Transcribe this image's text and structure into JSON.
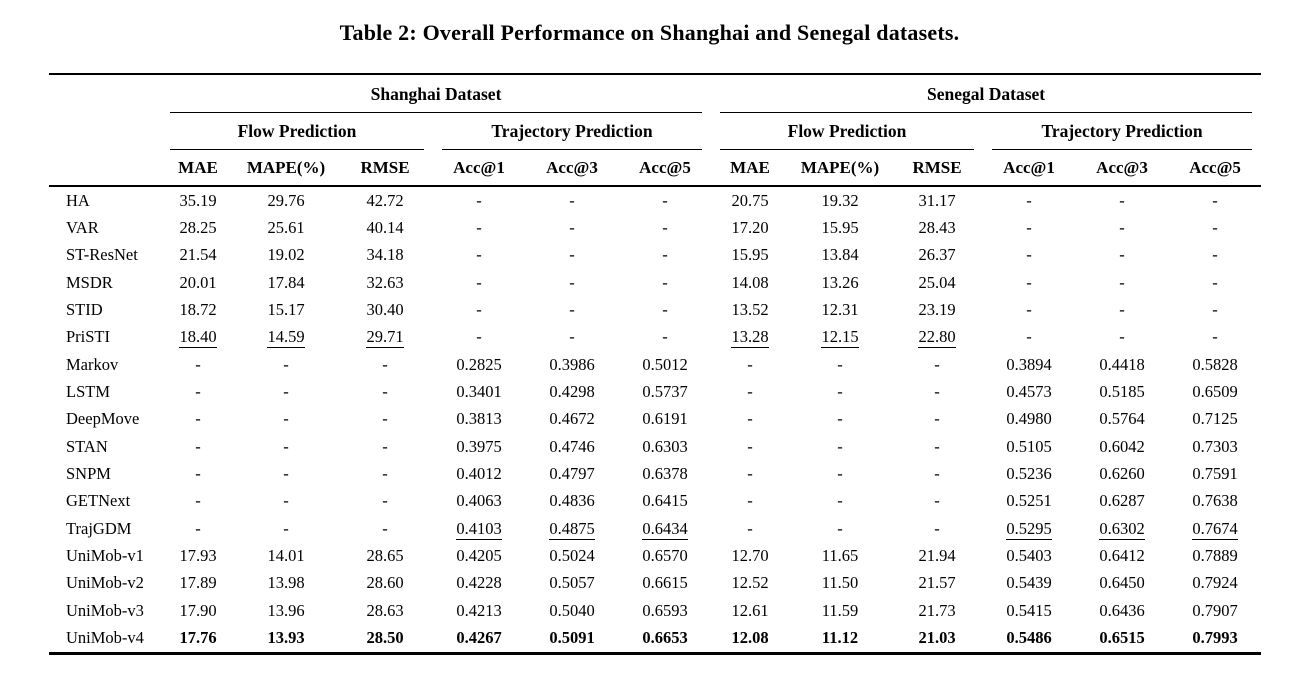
{
  "title": "Table 2: Overall Performance on Shanghai and Senegal datasets.",
  "table": {
    "dataset_groups": [
      {
        "label": "Shanghai Dataset",
        "task_groups": [
          {
            "label": "Flow Prediction",
            "metrics": [
              "MAE",
              "MAPE(%)",
              "RMSE"
            ]
          },
          {
            "label": "Trajectory Prediction",
            "metrics": [
              "Acc@1",
              "Acc@3",
              "Acc@5"
            ]
          }
        ]
      },
      {
        "label": "Senegal Dataset",
        "task_groups": [
          {
            "label": "Flow Prediction",
            "metrics": [
              "MAE",
              "MAPE(%)",
              "RMSE"
            ]
          },
          {
            "label": "Trajectory Prediction",
            "metrics": [
              "Acc@1",
              "Acc@3",
              "Acc@5"
            ]
          }
        ]
      }
    ],
    "rows": [
      {
        "model": "HA",
        "style": "normal",
        "values": [
          "35.19",
          "29.76",
          "42.72",
          "-",
          "-",
          "-",
          "20.75",
          "19.32",
          "31.17",
          "-",
          "-",
          "-"
        ]
      },
      {
        "model": "VAR",
        "style": "normal",
        "values": [
          "28.25",
          "25.61",
          "40.14",
          "-",
          "-",
          "-",
          "17.20",
          "15.95",
          "28.43",
          "-",
          "-",
          "-"
        ]
      },
      {
        "model": "ST-ResNet",
        "style": "normal",
        "values": [
          "21.54",
          "19.02",
          "34.18",
          "-",
          "-",
          "-",
          "15.95",
          "13.84",
          "26.37",
          "-",
          "-",
          "-"
        ]
      },
      {
        "model": "MSDR",
        "style": "normal",
        "values": [
          "20.01",
          "17.84",
          "32.63",
          "-",
          "-",
          "-",
          "14.08",
          "13.26",
          "25.04",
          "-",
          "-",
          "-"
        ]
      },
      {
        "model": "STID",
        "style": "normal",
        "values": [
          "18.72",
          "15.17",
          "30.40",
          "-",
          "-",
          "-",
          "13.52",
          "12.31",
          "23.19",
          "-",
          "-",
          "-"
        ]
      },
      {
        "model": "PriSTI",
        "style": "underline",
        "values": [
          "18.40",
          "14.59",
          "29.71",
          "-",
          "-",
          "-",
          "13.28",
          "12.15",
          "22.80",
          "-",
          "-",
          "-"
        ]
      },
      {
        "model": "Markov",
        "style": "normal",
        "values": [
          "-",
          "-",
          "-",
          "0.2825",
          "0.3986",
          "0.5012",
          "-",
          "-",
          "-",
          "0.3894",
          "0.4418",
          "0.5828"
        ]
      },
      {
        "model": "LSTM",
        "style": "normal",
        "values": [
          "-",
          "-",
          "-",
          "0.3401",
          "0.4298",
          "0.5737",
          "-",
          "-",
          "-",
          "0.4573",
          "0.5185",
          "0.6509"
        ]
      },
      {
        "model": "DeepMove",
        "style": "normal",
        "values": [
          "-",
          "-",
          "-",
          "0.3813",
          "0.4672",
          "0.6191",
          "-",
          "-",
          "-",
          "0.4980",
          "0.5764",
          "0.7125"
        ]
      },
      {
        "model": "STAN",
        "style": "normal",
        "values": [
          "-",
          "-",
          "-",
          "0.3975",
          "0.4746",
          "0.6303",
          "-",
          "-",
          "-",
          "0.5105",
          "0.6042",
          "0.7303"
        ]
      },
      {
        "model": "SNPM",
        "style": "normal",
        "values": [
          "-",
          "-",
          "-",
          "0.4012",
          "0.4797",
          "0.6378",
          "-",
          "-",
          "-",
          "0.5236",
          "0.6260",
          "0.7591"
        ]
      },
      {
        "model": "GETNext",
        "style": "normal",
        "values": [
          "-",
          "-",
          "-",
          "0.4063",
          "0.4836",
          "0.6415",
          "-",
          "-",
          "-",
          "0.5251",
          "0.6287",
          "0.7638"
        ]
      },
      {
        "model": "TrajGDM",
        "style": "underline",
        "values": [
          "-",
          "-",
          "-",
          "0.4103",
          "0.4875",
          "0.6434",
          "-",
          "-",
          "-",
          "0.5295",
          "0.6302",
          "0.7674"
        ]
      },
      {
        "model": "UniMob-v1",
        "style": "normal",
        "values": [
          "17.93",
          "14.01",
          "28.65",
          "0.4205",
          "0.5024",
          "0.6570",
          "12.70",
          "11.65",
          "21.94",
          "0.5403",
          "0.6412",
          "0.7889"
        ]
      },
      {
        "model": "UniMob-v2",
        "style": "normal",
        "values": [
          "17.89",
          "13.98",
          "28.60",
          "0.4228",
          "0.5057",
          "0.6615",
          "12.52",
          "11.50",
          "21.57",
          "0.5439",
          "0.6450",
          "0.7924"
        ]
      },
      {
        "model": "UniMob-v3",
        "style": "normal",
        "values": [
          "17.90",
          "13.96",
          "28.63",
          "0.4213",
          "0.5040",
          "0.6593",
          "12.61",
          "11.59",
          "21.73",
          "0.5415",
          "0.6436",
          "0.7907"
        ]
      },
      {
        "model": "UniMob-v4",
        "style": "bold",
        "values": [
          "17.76",
          "13.93",
          "28.50",
          "0.4267",
          "0.5091",
          "0.6653",
          "12.08",
          "11.12",
          "21.03",
          "0.5486",
          "0.6515",
          "0.7993"
        ]
      }
    ]
  },
  "colors": {
    "text": "#000000",
    "background": "#ffffff",
    "rule": "#000000"
  }
}
